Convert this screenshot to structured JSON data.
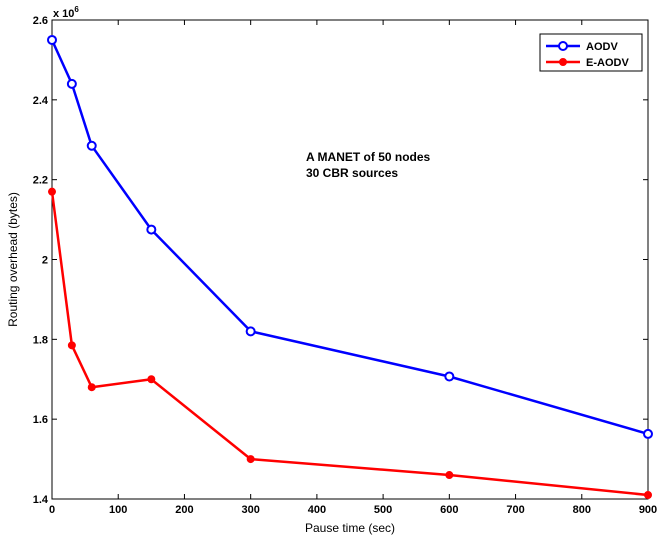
{
  "chart_data": {
    "type": "line",
    "title": "",
    "xlabel": "Pause time (sec)",
    "ylabel": "Routing overhead (bytes)",
    "y_multiplier_base": "x 10",
    "y_multiplier_exp": "6",
    "xlim": [
      0,
      900
    ],
    "ylim": [
      1.4,
      2.6
    ],
    "x_ticks": [
      0,
      100,
      200,
      300,
      400,
      500,
      600,
      700,
      800,
      900
    ],
    "x_tick_labels": [
      "0",
      "100",
      "200",
      "300",
      "400",
      "500",
      "600",
      "700",
      "800",
      "900"
    ],
    "y_ticks": [
      1.4,
      1.6,
      1.8,
      2.0,
      2.2,
      2.4,
      2.6
    ],
    "y_tick_labels": [
      "1.4",
      "1.6",
      "1.8",
      "2",
      "2.2",
      "2.4",
      "2.6"
    ],
    "grid": false,
    "legend_position": "top-right",
    "annotation_lines": [
      "A MANET of 50 nodes",
      "30 CBR sources"
    ],
    "series": [
      {
        "name": "AODV",
        "color": "#0000ff",
        "marker": "circle-open",
        "x": [
          0,
          30,
          60,
          150,
          300,
          600,
          900
        ],
        "y": [
          2.55,
          2.44,
          2.285,
          2.075,
          1.82,
          1.707,
          1.563
        ]
      },
      {
        "name": "E-AODV",
        "color": "#ff0000",
        "marker": "circle-filled",
        "x": [
          0,
          30,
          60,
          150,
          300,
          600,
          900
        ],
        "y": [
          2.17,
          1.785,
          1.68,
          1.7,
          1.5,
          1.46,
          1.41
        ]
      }
    ]
  }
}
